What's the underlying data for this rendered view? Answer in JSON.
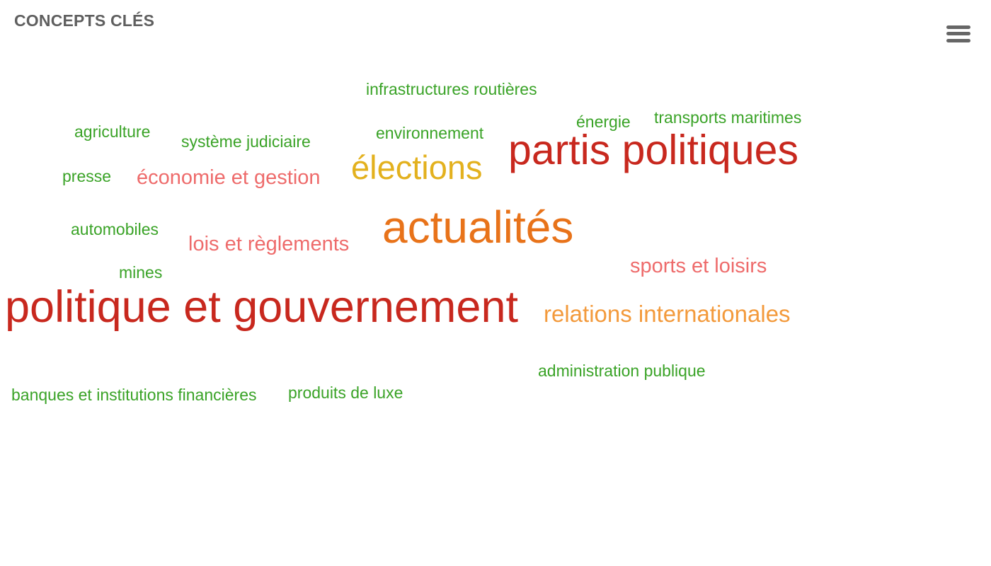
{
  "header": {
    "title": "CONCEPTS CLÉS",
    "menu_icon": "hamburger-menu-icon"
  },
  "colors": {
    "dark_red": "#c8281e",
    "orange": "#e8731a",
    "gold": "#e3b11e",
    "light_orange": "#f39a3c",
    "salmon": "#ee6b6b",
    "green": "#3aa327"
  },
  "words": [
    {
      "text": "infrastructures routières",
      "color": "#3aa327"
    },
    {
      "text": "agriculture",
      "color": "#3aa327"
    },
    {
      "text": "système judiciaire",
      "color": "#3aa327"
    },
    {
      "text": "environnement",
      "color": "#3aa327"
    },
    {
      "text": "énergie",
      "color": "#3aa327"
    },
    {
      "text": "transports maritimes",
      "color": "#3aa327"
    },
    {
      "text": "partis politiques",
      "color": "#c8281e"
    },
    {
      "text": "presse",
      "color": "#3aa327"
    },
    {
      "text": "économie et gestion",
      "color": "#ee6b6b"
    },
    {
      "text": "élections",
      "color": "#e3b11e"
    },
    {
      "text": "automobiles",
      "color": "#3aa327"
    },
    {
      "text": "lois et règlements",
      "color": "#ee6b6b"
    },
    {
      "text": "actualités",
      "color": "#e8731a"
    },
    {
      "text": "mines",
      "color": "#3aa327"
    },
    {
      "text": "sports et loisirs",
      "color": "#ee6b6b"
    },
    {
      "text": "politique et gouvernement",
      "color": "#c8281e"
    },
    {
      "text": "relations internationales",
      "color": "#f39a3c"
    },
    {
      "text": "administration publique",
      "color": "#3aa327"
    },
    {
      "text": "banques et institutions financières",
      "color": "#3aa327"
    },
    {
      "text": "produits de luxe",
      "color": "#3aa327"
    }
  ]
}
